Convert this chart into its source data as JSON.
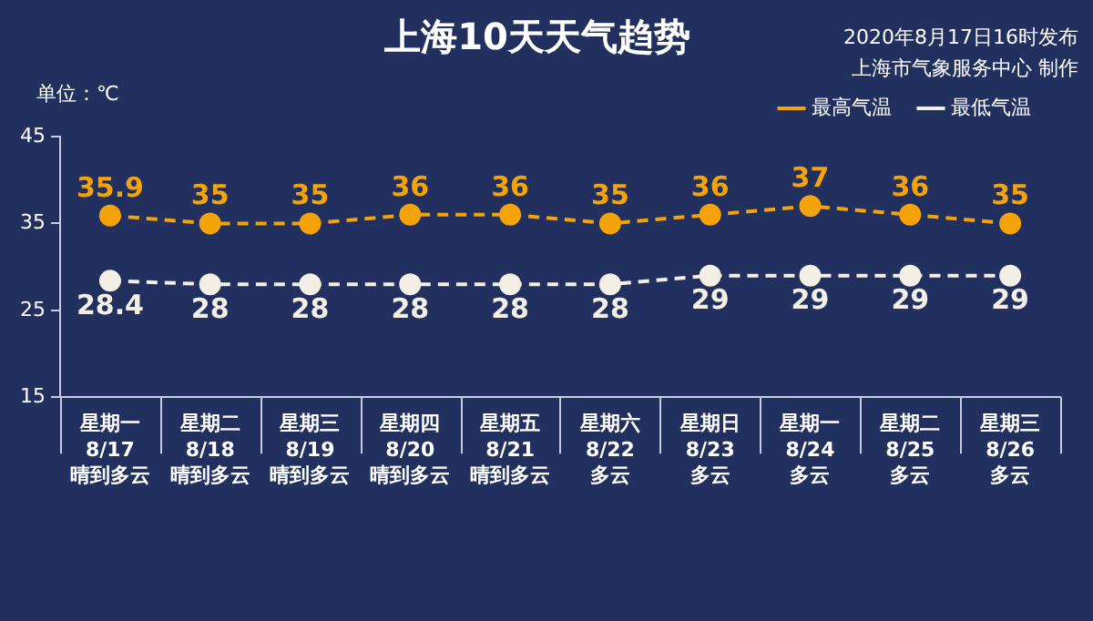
{
  "chart_data": {
    "type": "line",
    "title": "上海10天天气趋势",
    "ylabel": "单位：℃",
    "annotations": [
      "2020年8月17日16时发布",
      "上海市气象服务中心 制作"
    ],
    "categories": [
      "星期一\n8/17\n晴到多云",
      "星期二\n8/18\n晴到多云",
      "星期三\n8/19\n晴到多云",
      "星期四\n8/20\n晴到多云",
      "星期五\n8/21\n晴到多云",
      "星期六\n8/22\n多云",
      "星期日\n8/23\n多云",
      "星期一\n8/24\n多云",
      "星期二\n8/25\n多云",
      "星期三\n8/26\n多云"
    ],
    "series": [
      {
        "name": "最高气温",
        "color": "#f5a30a",
        "values": [
          35.9,
          35,
          35,
          36,
          36,
          35,
          36,
          37,
          36,
          35
        ]
      },
      {
        "name": "最低气温",
        "color": "#f3efe4",
        "values": [
          28.4,
          28,
          28,
          28,
          28,
          28,
          29,
          29,
          29,
          29
        ]
      }
    ],
    "ylim": [
      15,
      45
    ],
    "yticks": [
      15,
      25,
      35,
      45
    ],
    "grid": false,
    "legend": "top right",
    "marker": "circle",
    "line_style": "dashed",
    "data_labels": true
  }
}
